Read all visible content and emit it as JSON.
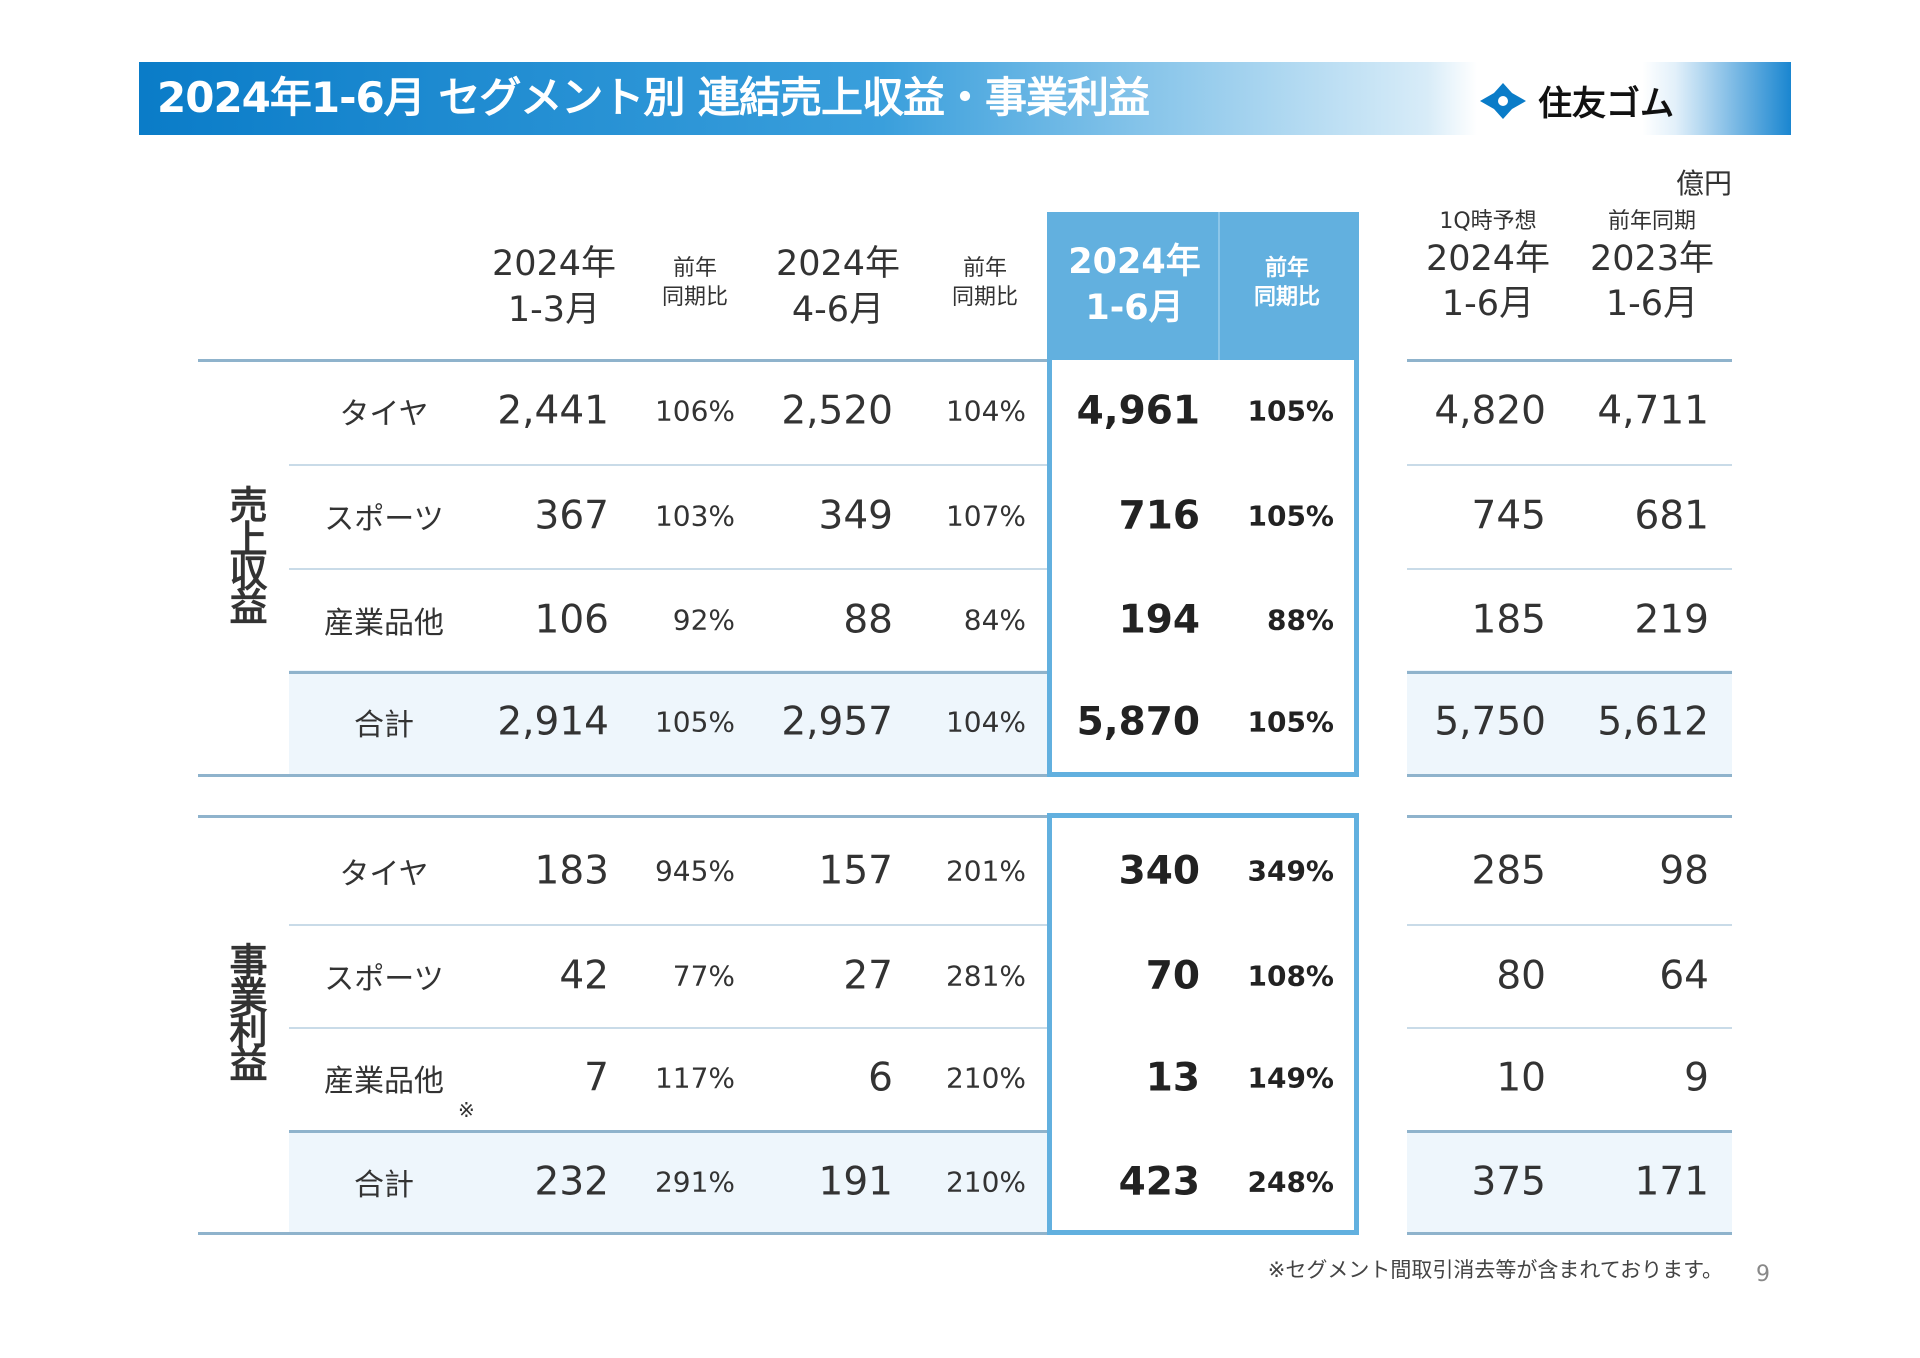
{
  "title": "2024年1-6月 セグメント別 連結売上収益・事業利益",
  "logo": {
    "text": "住友ゴム",
    "color": "#0a7cc8"
  },
  "unit": "億円",
  "colors": {
    "accent": "#62b0df",
    "title_bar": "#0a7cc8"
  },
  "headers": {
    "q1": {
      "year": "2024年",
      "period": "1-3月"
    },
    "q1_yoy": {
      "l1": "前年",
      "l2": "同期比"
    },
    "q2": {
      "year": "2024年",
      "period": "4-6月"
    },
    "q2_yoy": {
      "l1": "前年",
      "l2": "同期比"
    },
    "h1": {
      "year": "2024年",
      "period": "1-6月"
    },
    "h1_yoy": {
      "l1": "前年",
      "l2": "同期比"
    },
    "forecast": {
      "note": "1Q時予想",
      "year": "2024年",
      "period": "1-6月"
    },
    "prev": {
      "note": "前年同期",
      "year": "2023年",
      "period": "1-6月"
    }
  },
  "sections": [
    {
      "label": "売上収益",
      "rows": [
        {
          "name": "タイヤ",
          "q1": "2,441",
          "q1_yoy": "106%",
          "q2": "2,520",
          "q2_yoy": "104%",
          "h1": "4,961",
          "h1_yoy": "105%",
          "forecast": "4,820",
          "prev": "4,711"
        },
        {
          "name": "スポーツ",
          "q1": "367",
          "q1_yoy": "103%",
          "q2": "349",
          "q2_yoy": "107%",
          "h1": "716",
          "h1_yoy": "105%",
          "forecast": "745",
          "prev": "681"
        },
        {
          "name": "産業品他",
          "q1": "106",
          "q1_yoy": "92%",
          "q2": "88",
          "q2_yoy": "84%",
          "h1": "194",
          "h1_yoy": "88%",
          "forecast": "185",
          "prev": "219"
        },
        {
          "name": "合計",
          "q1": "2,914",
          "q1_yoy": "105%",
          "q2": "2,957",
          "q2_yoy": "104%",
          "h1": "5,870",
          "h1_yoy": "105%",
          "forecast": "5,750",
          "prev": "5,612"
        }
      ]
    },
    {
      "label": "事業利益",
      "rows": [
        {
          "name": "タイヤ",
          "q1": "183",
          "q1_yoy": "945%",
          "q2": "157",
          "q2_yoy": "201%",
          "h1": "340",
          "h1_yoy": "349%",
          "forecast": "285",
          "prev": "98"
        },
        {
          "name": "スポーツ",
          "q1": "42",
          "q1_yoy": "77%",
          "q2": "27",
          "q2_yoy": "281%",
          "h1": "70",
          "h1_yoy": "108%",
          "forecast": "80",
          "prev": "64"
        },
        {
          "name": "産業品他",
          "mark": "※",
          "q1": "7",
          "q1_yoy": "117%",
          "q2": "6",
          "q2_yoy": "210%",
          "h1": "13",
          "h1_yoy": "149%",
          "forecast": "10",
          "prev": "9"
        },
        {
          "name": "合計",
          "q1": "232",
          "q1_yoy": "291%",
          "q2": "191",
          "q2_yoy": "210%",
          "h1": "423",
          "h1_yoy": "248%",
          "forecast": "375",
          "prev": "171"
        }
      ]
    }
  ],
  "footnote": "※セグメント間取引消去等が含まれております。",
  "page_number": "9"
}
